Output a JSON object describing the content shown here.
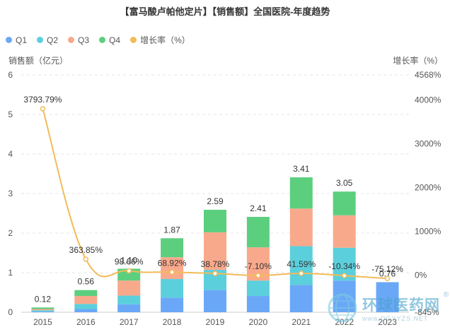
{
  "title": "【富马酸卢帕他定片】【销售额】全国医院-年度趋势",
  "legend": [
    {
      "label": "Q1",
      "color": "#6aa8f7"
    },
    {
      "label": "Q2",
      "color": "#5ccfdc"
    },
    {
      "label": "Q3",
      "color": "#f9a98b"
    },
    {
      "label": "Q4",
      "color": "#5ccf7f"
    },
    {
      "label": "增长率（%）",
      "color": "#f2bb58"
    }
  ],
  "axis": {
    "left_label": "销售额（亿元）",
    "right_label": "增长率（%）"
  },
  "watermark": {
    "name": "环球医药网",
    "url": "www.QGYYZS.NET",
    "reg": "®"
  },
  "chart_data": {
    "type": "bar",
    "stacked": true,
    "categories": [
      "2015",
      "2016",
      "2017",
      "2018",
      "2019",
      "2020",
      "2021",
      "2022",
      "2023"
    ],
    "series": [
      {
        "name": "Q1",
        "values": [
          0.02,
          0.08,
          0.2,
          0.37,
          0.56,
          0.41,
          0.69,
          0.8,
          0.76
        ]
      },
      {
        "name": "Q2",
        "values": [
          0.03,
          0.13,
          0.22,
          0.47,
          0.51,
          0.39,
          0.98,
          0.83,
          0.0
        ]
      },
      {
        "name": "Q3",
        "values": [
          0.03,
          0.2,
          0.38,
          0.55,
          0.95,
          0.84,
          0.95,
          0.82,
          0.0
        ]
      },
      {
        "name": "Q4",
        "values": [
          0.04,
          0.15,
          0.3,
          0.48,
          0.57,
          0.77,
          0.79,
          0.6,
          0.0
        ]
      }
    ],
    "totals": [
      0.12,
      0.56,
      1.1,
      1.87,
      2.59,
      2.41,
      3.41,
      3.05,
      0.76
    ],
    "total_labels": [
      "0.12",
      "0.56",
      "1.10",
      "1.87",
      "2.59",
      "2.41",
      "3.41",
      "3.05",
      "0.76"
    ],
    "growth": {
      "name": "增长率（%）",
      "values": [
        3793.79,
        363.85,
        98.66,
        68.92,
        38.78,
        -7.1,
        41.59,
        -10.34,
        -75.12
      ],
      "labels": [
        "3793.79%",
        "363.85%",
        "98.66%",
        "68.92%",
        "38.78%",
        "-7.10%",
        "41.59%",
        "-10.34%",
        "-75.12%"
      ]
    },
    "y_left": {
      "min": 0,
      "max": 6,
      "ticks": [
        "0",
        "1",
        "2",
        "3",
        "4",
        "5",
        "6"
      ]
    },
    "y_right": {
      "min": -845,
      "max": 4568,
      "ticks": [
        {
          "value": 4568,
          "label": "4568%"
        },
        {
          "value": 4000,
          "label": "4000%"
        },
        {
          "value": 3000,
          "label": "3000%"
        },
        {
          "value": 2000,
          "label": "2000%"
        },
        {
          "value": 1000,
          "label": "1000%"
        },
        {
          "value": 0,
          "label": "0%"
        },
        {
          "value": -845,
          "label": "-845%"
        }
      ]
    },
    "xlabel": "",
    "ylabel": "销售额（亿元）",
    "y2label": "增长率（%）"
  }
}
